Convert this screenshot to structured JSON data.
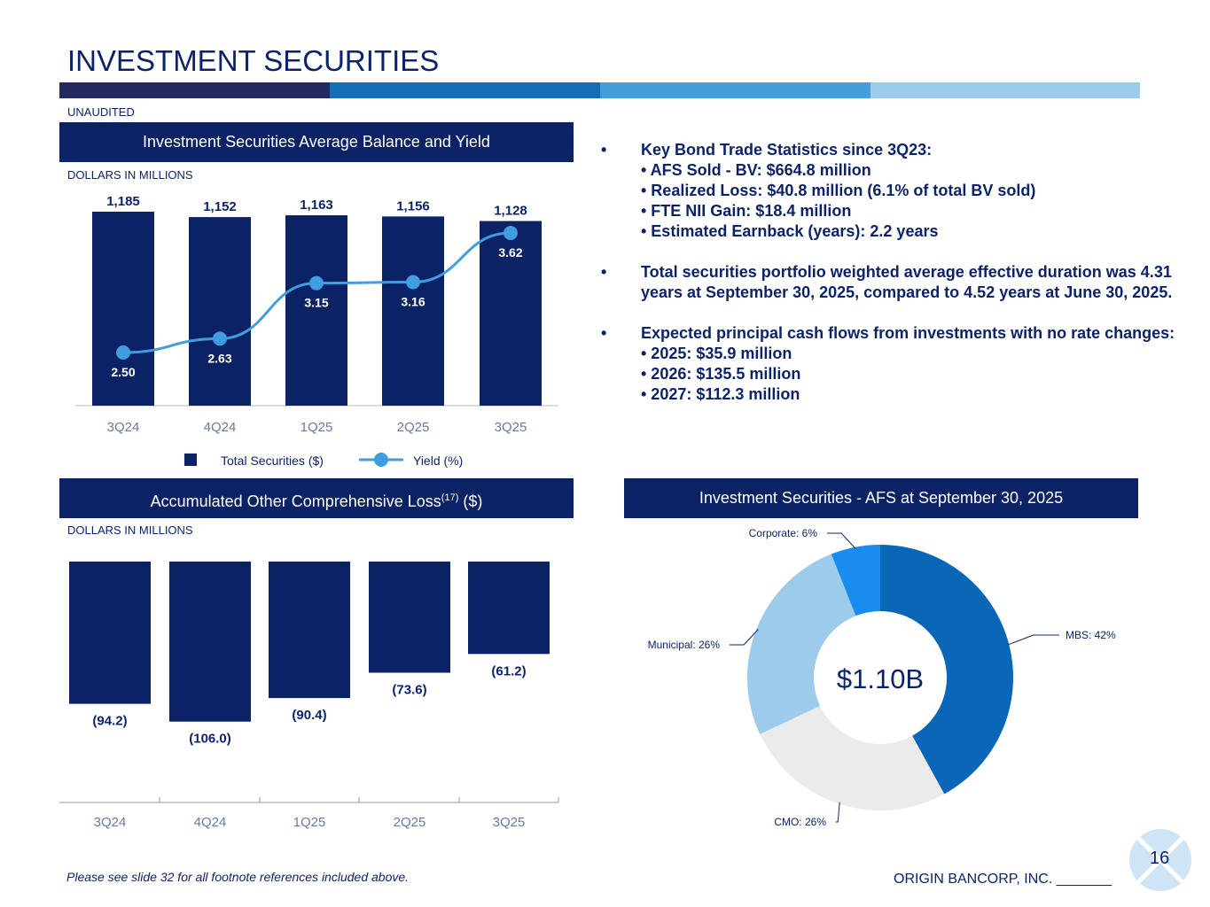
{
  "title": "INVESTMENT SECURITIES",
  "stripe_colors": [
    "#232a5f",
    "#156db5",
    "#419fdc",
    "#9ccbec"
  ],
  "unaudited": "UNAUDITED",
  "chart1_banner": "Investment Securities Average Balance and Yield",
  "chart1_units": "DOLLARS IN MILLIONS",
  "chart2_banner": "Accumulated Other Comprehensive Loss",
  "chart2_banner_sup": "(17)",
  "chart2_banner_suffix": " ($)",
  "chart2_units": "DOLLARS IN MILLIONS",
  "chart3_banner": "Investment Securities - AFS at September 30, 2025",
  "bullets": {
    "b1": "Key Bond Trade Statistics since 3Q23:",
    "b1_subs": [
      "• AFS Sold - BV: $664.8 million",
      "• Realized Loss: $40.8 million (6.1% of total BV sold)",
      "• FTE NII Gain: $18.4 million",
      "• Estimated Earnback (years): 2.2 years"
    ],
    "b2": "Total securities portfolio weighted average effective duration was 4.31 years at September 30, 2025, compared to 4.52 years at June 30, 2025.",
    "b3": "Expected principal cash flows from investments with no rate changes:",
    "b3_subs": [
      "• 2025: $35.9 million",
      "• 2026: $135.5 million",
      "• 2027: $112.3 million"
    ]
  },
  "chart_data": [
    {
      "type": "bar",
      "categories": [
        "3Q24",
        "4Q24",
        "1Q25",
        "2Q25",
        "3Q25"
      ],
      "series": [
        {
          "name": "Total Securities ($)",
          "type": "bar",
          "values": [
            1185,
            1152,
            1163,
            1156,
            1128
          ],
          "labels": [
            "1,185",
            "1,152",
            "1,163",
            "1,156",
            "1,128"
          ],
          "color": "#0b2265"
        },
        {
          "name": "Yield (%)",
          "type": "line",
          "values": [
            2.5,
            2.63,
            3.15,
            3.16,
            3.62
          ],
          "labels": [
            "2.50",
            "2.63",
            "3.15",
            "3.16",
            "3.62"
          ],
          "color": "#3f9de0"
        }
      ],
      "legend": "bottom"
    },
    {
      "type": "bar",
      "categories": [
        "3Q24",
        "4Q24",
        "1Q25",
        "2Q25",
        "3Q25"
      ],
      "values": [
        -94.2,
        -106.0,
        -90.4,
        -73.6,
        -61.2
      ],
      "labels": [
        "(94.2)",
        "(106.0)",
        "(90.4)",
        "(73.6)",
        "(61.2)"
      ],
      "color": "#0b2265"
    },
    {
      "type": "pie",
      "center_label": "$1.10B",
      "slices": [
        {
          "label": "MBS: 42%",
          "value": 42,
          "color": "#0a67b8"
        },
        {
          "label": "CMO: 26%",
          "value": 26,
          "color": "#ebebeb"
        },
        {
          "label": "Municipal: 26%",
          "value": 26,
          "color": "#9ccbec"
        },
        {
          "label": "Corporate: 6%",
          "value": 6,
          "color": "#1a8cf0"
        }
      ]
    }
  ],
  "footnote": "Please see slide 32 for all footnote references included above.",
  "company": "ORIGIN BANCORP, INC. _______",
  "page_number": "16"
}
